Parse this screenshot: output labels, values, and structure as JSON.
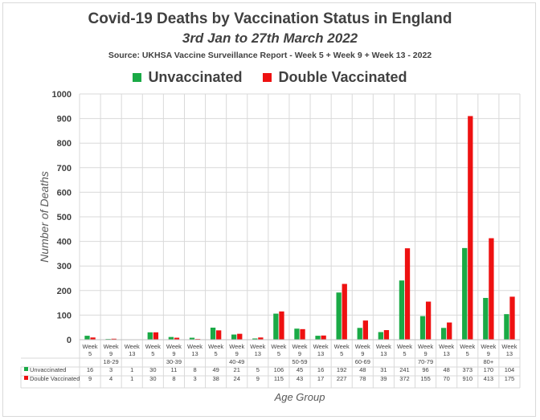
{
  "chart_data": {
    "type": "bar",
    "title": "Covid-19 Deaths by Vaccination Status in England",
    "subtitle": "3rd Jan to 27th March 2022",
    "source": "Source: UKHSA Vaccine Surveillance Report - Week 5 + Week 9 + Week 13 - 2022",
    "xlabel": "Age Group",
    "ylabel": "Number of Deaths",
    "ylim": [
      0,
      1000
    ],
    "yticks": [
      0,
      100,
      200,
      300,
      400,
      500,
      600,
      700,
      800,
      900,
      1000
    ],
    "grid": true,
    "legend_position": "top",
    "groups": [
      "18-29",
      "30-39",
      "40-49",
      "50-59",
      "60-69",
      "70-79",
      "80+"
    ],
    "weeks": [
      "5",
      "9",
      "13"
    ],
    "week_word": "Week",
    "series": [
      {
        "name": "Unvaccinated",
        "color": "#1aaa46",
        "values": [
          16,
          3,
          1,
          30,
          11,
          8,
          49,
          21,
          5,
          106,
          45,
          16,
          192,
          48,
          31,
          241,
          96,
          48,
          373,
          170,
          104
        ]
      },
      {
        "name": "Double Vaccinated",
        "color": "#ee1111",
        "values": [
          9,
          4,
          1,
          30,
          8,
          3,
          38,
          24,
          9,
          115,
          43,
          17,
          227,
          78,
          39,
          372,
          155,
          70,
          910,
          413,
          175
        ]
      }
    ]
  }
}
